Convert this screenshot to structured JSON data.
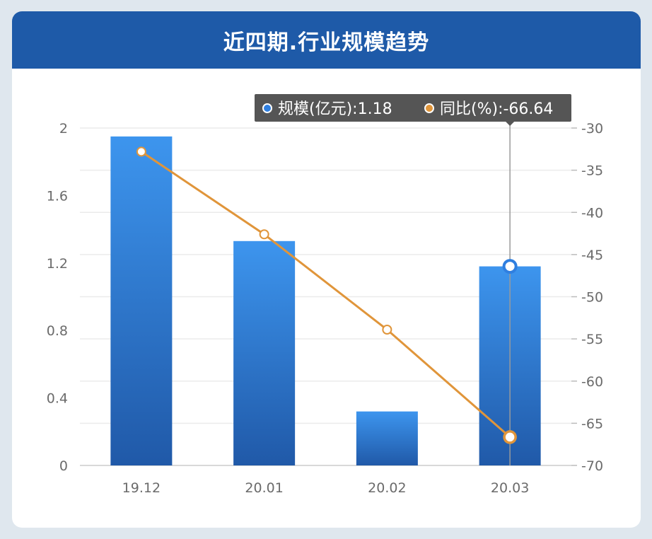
{
  "header": {
    "title": "近四期.行业规模趋势"
  },
  "colors": {
    "header_bg": "#1e5aa8",
    "bar_top": "#3d95ee",
    "bar_bottom": "#2059a8",
    "line": "#e0953a",
    "tooltip_bg": "#555555"
  },
  "chart_data": {
    "type": "bar",
    "categories": [
      "19.12",
      "20.01",
      "20.02",
      "20.03"
    ],
    "series": [
      {
        "name": "规模(亿元)",
        "type": "bar",
        "axis": "left",
        "values": [
          1.95,
          1.33,
          0.32,
          1.18
        ]
      },
      {
        "name": "同比(%)",
        "type": "line",
        "axis": "right",
        "values": [
          -32.8,
          -42.6,
          -53.9,
          -66.64
        ]
      }
    ],
    "y_left": {
      "range": [
        0,
        2
      ],
      "ticks": [
        "0",
        "0.4",
        "0.8",
        "1.2",
        "1.6",
        "2"
      ]
    },
    "y_right": {
      "range": [
        -70,
        -30
      ],
      "ticks": [
        "-30",
        "-35",
        "-40",
        "-45",
        "-50",
        "-55",
        "-60",
        "-65",
        "-70"
      ]
    },
    "grid": true,
    "legend": "none",
    "tooltip": {
      "category": "20.03",
      "items": [
        {
          "label": "规模(亿元):1.18",
          "color": "#2f7fe0"
        },
        {
          "label": "同比(%):-66.64",
          "color": "#e0953a"
        }
      ]
    }
  }
}
